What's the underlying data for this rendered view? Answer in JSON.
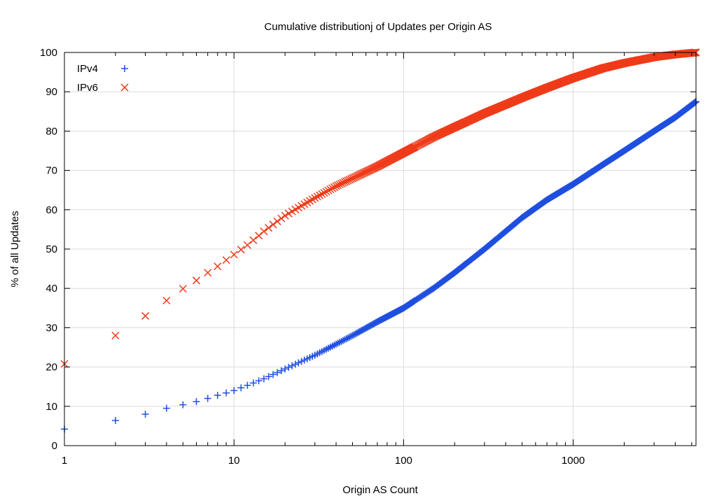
{
  "chart_data": {
    "type": "scatter",
    "title": "Cumulative distributionj of Updates per Origin AS",
    "xlabel": "Origin AS Count",
    "ylabel": "% of all Updates",
    "xscale": "log",
    "xlim": [
      1,
      5300
    ],
    "ylim": [
      0,
      100
    ],
    "xticks": [
      "1",
      "10",
      "100",
      "1000"
    ],
    "yticks": [
      "0",
      "10",
      "20",
      "30",
      "40",
      "50",
      "60",
      "70",
      "80",
      "90",
      "100"
    ],
    "grid": true,
    "legend": "top-left",
    "series": [
      {
        "name": "IPv4",
        "marker": "plus",
        "color": "#1f4fe0",
        "curve": [
          [
            1,
            4.2
          ],
          [
            2,
            6.4
          ],
          [
            3,
            8.0
          ],
          [
            4,
            9.5
          ],
          [
            5,
            10.4
          ],
          [
            6,
            11.2
          ],
          [
            7,
            12.0
          ],
          [
            8,
            12.8
          ],
          [
            9,
            13.4
          ],
          [
            10,
            14.0
          ],
          [
            15,
            17.0
          ],
          [
            20,
            19.5
          ],
          [
            30,
            23.0
          ],
          [
            50,
            28.0
          ],
          [
            70,
            31.5
          ],
          [
            100,
            35.0
          ],
          [
            150,
            40.0
          ],
          [
            200,
            44.0
          ],
          [
            300,
            50.0
          ],
          [
            400,
            54.5
          ],
          [
            500,
            58.0
          ],
          [
            700,
            62.5
          ],
          [
            1000,
            66.5
          ],
          [
            1500,
            71.5
          ],
          [
            2000,
            75.0
          ],
          [
            3000,
            80.0
          ],
          [
            4000,
            83.5
          ],
          [
            5300,
            87.5
          ]
        ]
      },
      {
        "name": "IPv6",
        "marker": "cross",
        "color": "#ef3b1a",
        "curve": [
          [
            1,
            20.8
          ],
          [
            2,
            28.0
          ],
          [
            3,
            33.0
          ],
          [
            4,
            36.9
          ],
          [
            5,
            39.9
          ],
          [
            6,
            42.0
          ],
          [
            7,
            44.0
          ],
          [
            8,
            45.6
          ],
          [
            9,
            47.2
          ],
          [
            10,
            48.6
          ],
          [
            12,
            51.0
          ],
          [
            15,
            54.5
          ],
          [
            20,
            58.5
          ],
          [
            25,
            61.0
          ],
          [
            30,
            63.0
          ],
          [
            40,
            66.0
          ],
          [
            50,
            68.0
          ],
          [
            70,
            71.0
          ],
          [
            100,
            74.5
          ],
          [
            150,
            78.5
          ],
          [
            200,
            81.0
          ],
          [
            300,
            84.5
          ],
          [
            500,
            88.5
          ],
          [
            700,
            91.0
          ],
          [
            1000,
            93.5
          ],
          [
            1500,
            96.0
          ],
          [
            2000,
            97.3
          ],
          [
            3000,
            98.8
          ],
          [
            4000,
            99.5
          ],
          [
            5300,
            100.0
          ]
        ]
      }
    ]
  }
}
